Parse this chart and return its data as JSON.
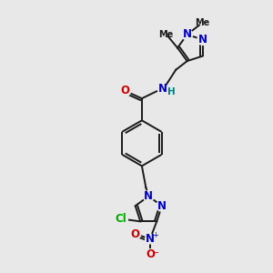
{
  "bg_color": "#e8e8e8",
  "bond_color": "#1a1a1a",
  "N_color": "#0000cc",
  "O_color": "#cc0000",
  "Cl_color": "#00aa00",
  "NH_color": "#008080",
  "C_color": "#1a1a1a",
  "figsize": [
    3.0,
    3.0
  ],
  "dpi": 100,
  "xlim": [
    0,
    10
  ],
  "ylim": [
    0,
    10
  ]
}
